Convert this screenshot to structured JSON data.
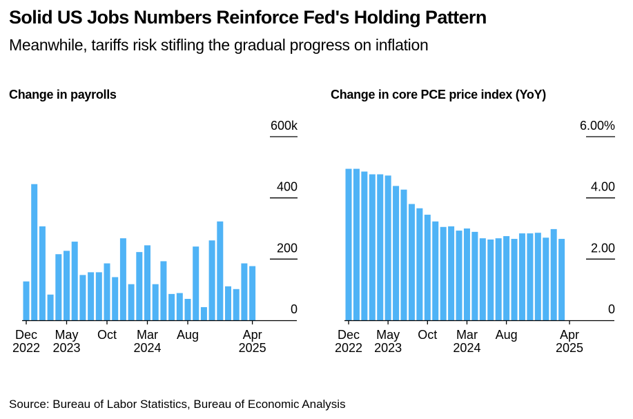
{
  "header": {
    "title": "Solid US Jobs Numbers Reinforce Fed's Holding Pattern",
    "subtitle": "Meanwhile, tariffs risk stifling the gradual progress on inflation"
  },
  "footer": {
    "source": "Source: Bureau of Labor Statistics, Bureau of Economic Analysis"
  },
  "colors": {
    "bar": "#4FB3F6",
    "axis": "#000000"
  },
  "chart_data": [
    {
      "type": "bar",
      "title": "Change in payrolls",
      "xlabel": "",
      "ylabel": "",
      "ylim": [
        0,
        600
      ],
      "y_unit": "thousands",
      "y_ticks": [
        0,
        200,
        400,
        600
      ],
      "y_tick_labels": [
        "0",
        "200",
        "400",
        "600k"
      ],
      "x_tick_labels": [
        {
          "month": "Dec",
          "year": "2022",
          "index": 0
        },
        {
          "month": "May",
          "year": "2023",
          "index": 5
        },
        {
          "month": "Oct",
          "year": "",
          "index": 10
        },
        {
          "month": "Mar",
          "year": "2024",
          "index": 15
        },
        {
          "month": "Aug",
          "year": "",
          "index": 20
        },
        {
          "month": "Apr",
          "year": "2025",
          "index": 28
        }
      ],
      "axis_months": 29,
      "categories": [
        "Dec 2022",
        "Jan 2023",
        "Feb 2023",
        "Mar 2023",
        "Apr 2023",
        "May 2023",
        "Jun 2023",
        "Jul 2023",
        "Aug 2023",
        "Sep 2023",
        "Oct 2023",
        "Nov 2023",
        "Dec 2023",
        "Jan 2024",
        "Feb 2024",
        "Mar 2024",
        "Apr 2024",
        "May 2024",
        "Jun 2024",
        "Jul 2024",
        "Aug 2024",
        "Sep 2024",
        "Oct 2024",
        "Nov 2024",
        "Dec 2024",
        "Jan 2025",
        "Feb 2025",
        "Mar 2025",
        "Apr 2025"
      ],
      "values": [
        127,
        445,
        307,
        84,
        216,
        227,
        257,
        148,
        157,
        157,
        186,
        141,
        268,
        118,
        223,
        245,
        118,
        193,
        86,
        89,
        70,
        241,
        43,
        261,
        323,
        111,
        102,
        186,
        177
      ],
      "grid": true,
      "legend": "none"
    },
    {
      "type": "bar",
      "title": "Change in core PCE price index (YoY)",
      "xlabel": "",
      "ylabel": "",
      "ylim": [
        0,
        6
      ],
      "y_unit": "percent",
      "y_ticks": [
        0,
        2,
        4,
        6
      ],
      "y_tick_labels": [
        "0",
        "2.00",
        "4.00",
        "6.00%"
      ],
      "x_tick_labels": [
        {
          "month": "Dec",
          "year": "2022",
          "index": 0
        },
        {
          "month": "May",
          "year": "2023",
          "index": 5
        },
        {
          "month": "Oct",
          "year": "",
          "index": 10
        },
        {
          "month": "Mar",
          "year": "2024",
          "index": 15
        },
        {
          "month": "Aug",
          "year": "",
          "index": 20
        },
        {
          "month": "Apr",
          "year": "2025",
          "index": 28
        }
      ],
      "axis_months": 29,
      "categories": [
        "Dec 2022",
        "Jan 2023",
        "Feb 2023",
        "Mar 2023",
        "Apr 2023",
        "May 2023",
        "Jun 2023",
        "Jul 2023",
        "Aug 2023",
        "Sep 2023",
        "Oct 2023",
        "Nov 2023",
        "Dec 2023",
        "Jan 2024",
        "Feb 2024",
        "Mar 2024",
        "Apr 2024",
        "May 2024",
        "Jun 2024",
        "Jul 2024",
        "Aug 2024",
        "Sep 2024",
        "Oct 2024",
        "Nov 2024",
        "Dec 2024",
        "Jan 2025",
        "Feb 2025",
        "Mar 2025"
      ],
      "values": [
        4.95,
        4.95,
        4.86,
        4.77,
        4.77,
        4.73,
        4.39,
        4.27,
        3.8,
        3.66,
        3.45,
        3.23,
        3.05,
        3.07,
        2.93,
        3.0,
        2.89,
        2.68,
        2.64,
        2.68,
        2.75,
        2.66,
        2.84,
        2.84,
        2.86,
        2.7,
        2.98,
        2.66
      ],
      "grid": true,
      "legend": "none"
    }
  ]
}
